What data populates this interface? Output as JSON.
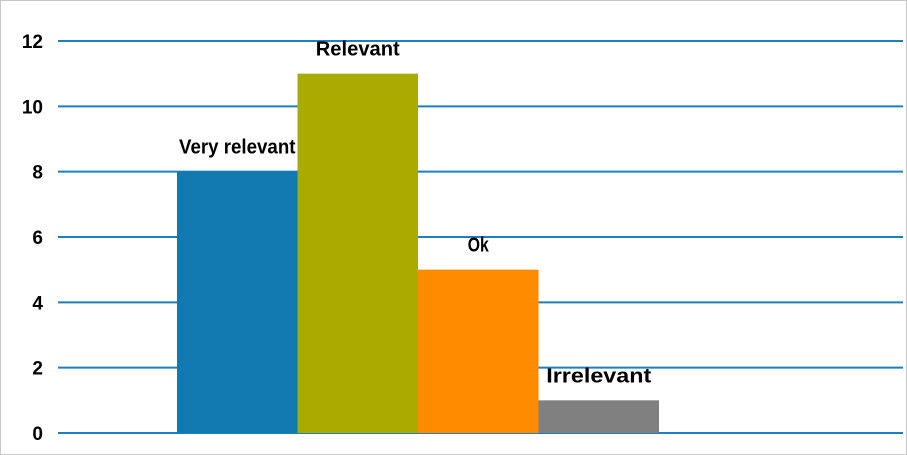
{
  "chart_data": {
    "type": "bar",
    "title": "",
    "xlabel": "",
    "ylabel": "",
    "categories": [
      "Very relevant",
      "Relevant",
      "Ok",
      "Irrelevant"
    ],
    "values": [
      8,
      11,
      5,
      1
    ],
    "ylim": [
      0,
      12
    ],
    "yticks": [
      0,
      2,
      4,
      6,
      8,
      10,
      12
    ],
    "bar_colors": [
      "#1279b0",
      "#a9ac00",
      "#ff8c00",
      "#808080"
    ],
    "gridline_color": "#1c7fc0",
    "grid": true,
    "legend": "none",
    "data_labels": "category name above each bar"
  }
}
